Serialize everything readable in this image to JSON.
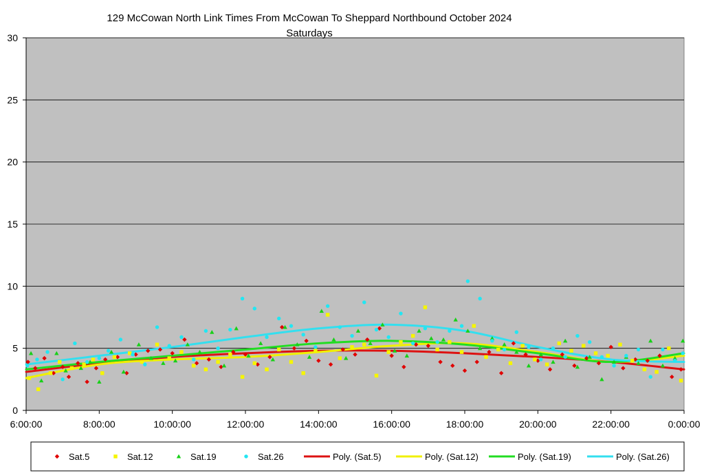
{
  "chart_data": {
    "type": "scatter",
    "title": "129 McCowan North Link Times From McCowan To Sheppard Northbound October 2024",
    "subtitle": "Saturdays",
    "xlabel": "",
    "ylabel": "",
    "xlim": [
      "6:00:00",
      "0:00:00"
    ],
    "ylim": [
      0,
      30
    ],
    "x_ticks": [
      "6:00:00",
      "8:00:00",
      "10:00:00",
      "12:00:00",
      "14:00:00",
      "16:00:00",
      "18:00:00",
      "20:00:00",
      "22:00:00",
      "0:00:00"
    ],
    "y_ticks": [
      "0",
      "5",
      "10",
      "15",
      "20",
      "25",
      "30"
    ],
    "grid": "horizontal",
    "legend_position": "bottom",
    "series": [
      {
        "name": "Sat.5",
        "kind": "scatter",
        "marker": "diamond",
        "color": "#e00000",
        "x": [
          "6:03",
          "6:15",
          "6:30",
          "6:45",
          "7:00",
          "7:10",
          "7:25",
          "7:40",
          "7:55",
          "8:10",
          "8:30",
          "8:45",
          "9:00",
          "9:20",
          "9:40",
          "10:00",
          "10:20",
          "10:40",
          "11:00",
          "11:20",
          "11:40",
          "12:00",
          "12:20",
          "12:40",
          "13:00",
          "13:20",
          "13:40",
          "14:00",
          "14:20",
          "14:40",
          "15:00",
          "15:20",
          "15:40",
          "16:00",
          "16:20",
          "16:40",
          "17:00",
          "17:20",
          "17:40",
          "18:00",
          "18:20",
          "18:40",
          "19:00",
          "19:20",
          "19:40",
          "20:00",
          "20:20",
          "20:40",
          "21:00",
          "21:20",
          "21:40",
          "22:00",
          "22:20",
          "22:40",
          "23:00",
          "23:20",
          "23:40",
          "23:55"
        ],
        "y": [
          3.9,
          3.4,
          4.2,
          3.0,
          3.5,
          2.7,
          3.8,
          2.3,
          3.4,
          4.1,
          4.3,
          3.0,
          4.5,
          4.8,
          4.9,
          4.6,
          5.7,
          3.8,
          4.1,
          3.5,
          4.7,
          4.5,
          3.7,
          4.3,
          6.7,
          5.0,
          5.6,
          4.0,
          3.7,
          4.9,
          4.5,
          5.7,
          6.6,
          4.4,
          3.5,
          5.3,
          5.2,
          3.9,
          3.6,
          3.2,
          3.9,
          4.7,
          3.0,
          5.4,
          4.5,
          4.0,
          3.3,
          4.5,
          3.6,
          4.2,
          3.8,
          5.1,
          3.4,
          4.1,
          4.0,
          4.4,
          2.7,
          3.3
        ]
      },
      {
        "name": "Sat.12",
        "kind": "scatter",
        "marker": "square",
        "color": "#f5f500",
        "x": [
          "6:05",
          "6:20",
          "6:40",
          "6:55",
          "7:15",
          "7:35",
          "7:50",
          "8:05",
          "8:25",
          "8:50",
          "9:10",
          "9:35",
          "9:55",
          "10:15",
          "10:35",
          "10:55",
          "11:15",
          "11:35",
          "11:55",
          "12:15",
          "12:35",
          "12:55",
          "13:15",
          "13:35",
          "13:55",
          "14:15",
          "14:35",
          "14:55",
          "15:15",
          "15:35",
          "15:55",
          "16:15",
          "16:35",
          "16:55",
          "17:15",
          "17:35",
          "17:55",
          "18:15",
          "18:35",
          "18:55",
          "19:15",
          "19:35",
          "19:55",
          "20:15",
          "20:35",
          "20:55",
          "21:15",
          "21:35",
          "21:55",
          "22:15",
          "22:35",
          "22:55",
          "23:15",
          "23:35",
          "23:55"
        ],
        "y": [
          2.6,
          1.7,
          3.0,
          3.9,
          3.4,
          3.7,
          4.1,
          3.0,
          4.3,
          4.6,
          3.9,
          5.3,
          4.2,
          4.7,
          3.6,
          3.3,
          3.9,
          4.5,
          2.7,
          3.8,
          3.3,
          4.9,
          3.9,
          3.0,
          4.8,
          7.7,
          4.2,
          5.1,
          5.3,
          2.8,
          4.7,
          5.5,
          6.0,
          8.3,
          4.9,
          5.5,
          4.7,
          6.8,
          4.3,
          4.9,
          3.8,
          5.2,
          4.1,
          3.7,
          5.4,
          4.8,
          5.2,
          4.6,
          4.4,
          5.3,
          4.0,
          3.3,
          3.1,
          5.0,
          2.4
        ]
      },
      {
        "name": "Sat.19",
        "kind": "scatter",
        "marker": "triangle",
        "color": "#18d018",
        "x": [
          "6:08",
          "6:25",
          "6:50",
          "7:05",
          "7:30",
          "7:45",
          "8:00",
          "8:20",
          "8:40",
          "9:05",
          "9:25",
          "9:45",
          "10:05",
          "10:25",
          "10:45",
          "11:05",
          "11:25",
          "11:45",
          "12:05",
          "12:25",
          "12:45",
          "13:05",
          "13:25",
          "13:45",
          "14:05",
          "14:25",
          "14:45",
          "15:05",
          "15:25",
          "15:45",
          "16:05",
          "16:25",
          "16:45",
          "17:05",
          "17:25",
          "17:45",
          "18:05",
          "18:25",
          "18:45",
          "19:05",
          "19:25",
          "19:45",
          "20:05",
          "20:25",
          "20:45",
          "21:05",
          "21:25",
          "21:45",
          "22:05",
          "22:25",
          "22:45",
          "23:05",
          "23:25",
          "23:45",
          "23:58"
        ],
        "y": [
          4.6,
          2.4,
          4.6,
          3.2,
          3.4,
          3.9,
          2.3,
          4.7,
          3.1,
          5.3,
          4.2,
          3.8,
          4.0,
          5.3,
          4.7,
          6.3,
          3.6,
          6.6,
          4.4,
          5.4,
          4.1,
          6.7,
          5.3,
          4.3,
          8.0,
          5.7,
          4.2,
          6.4,
          5.4,
          6.9,
          4.8,
          4.4,
          6.4,
          5.8,
          5.7,
          7.3,
          6.4,
          5.0,
          5.8,
          5.3,
          4.7,
          3.6,
          4.5,
          3.9,
          5.6,
          3.5,
          4.3,
          2.5,
          3.9,
          4.3,
          3.8,
          5.6,
          3.6,
          4.2,
          5.6
        ]
      },
      {
        "name": "Sat.26",
        "kind": "scatter",
        "marker": "circle",
        "color": "#22e6f2",
        "x": [
          "6:02",
          "6:18",
          "6:35",
          "7:00",
          "7:20",
          "7:40",
          "8:00",
          "8:15",
          "8:35",
          "8:55",
          "9:15",
          "9:35",
          "9:55",
          "10:15",
          "10:35",
          "10:55",
          "11:15",
          "11:35",
          "11:55",
          "12:15",
          "12:35",
          "12:55",
          "13:15",
          "13:35",
          "13:55",
          "14:15",
          "14:35",
          "14:55",
          "15:15",
          "15:35",
          "15:55",
          "16:15",
          "16:35",
          "16:55",
          "17:15",
          "17:35",
          "17:55",
          "18:05",
          "18:25",
          "18:45",
          "19:05",
          "19:25",
          "19:45",
          "20:05",
          "20:25",
          "20:45",
          "21:05",
          "21:25",
          "21:45",
          "22:05",
          "22:25",
          "22:45",
          "23:05",
          "23:25",
          "23:45",
          "23:58"
        ],
        "y": [
          3.6,
          4.1,
          4.7,
          2.5,
          5.4,
          3.9,
          4.2,
          4.8,
          5.7,
          4.5,
          3.7,
          6.7,
          5.2,
          5.9,
          4.1,
          6.4,
          5.0,
          6.5,
          9.0,
          8.2,
          5.9,
          7.4,
          6.8,
          6.1,
          5.1,
          8.4,
          6.7,
          6.0,
          8.7,
          6.5,
          5.9,
          7.8,
          5.4,
          6.6,
          5.5,
          6.4,
          6.8,
          10.4,
          9.0,
          5.6,
          4.9,
          6.3,
          5.1,
          4.1,
          5.0,
          4.3,
          6.0,
          5.5,
          4.3,
          3.6,
          4.4,
          4.9,
          2.7,
          4.9,
          4.0,
          4.6
        ]
      },
      {
        "name": "Poly. (Sat.5)",
        "kind": "trend",
        "color": "#dd1111",
        "x": [
          "6:00",
          "8:00",
          "10:00",
          "12:00",
          "14:00",
          "16:00",
          "18:00",
          "20:00",
          "22:00",
          "0:00"
        ],
        "y": [
          3.1,
          3.8,
          4.3,
          4.6,
          4.8,
          4.8,
          4.6,
          4.3,
          3.9,
          3.3
        ]
      },
      {
        "name": "Poly. (Sat.12)",
        "kind": "trend",
        "color": "#f0f000",
        "x": [
          "6:00",
          "8:00",
          "10:00",
          "12:00",
          "14:00",
          "16:00",
          "18:00",
          "20:00",
          "22:00",
          "0:00"
        ],
        "y": [
          2.6,
          3.7,
          4.1,
          4.3,
          4.7,
          5.2,
          5.4,
          4.7,
          3.9,
          4.4
        ]
      },
      {
        "name": "Poly. (Sat.19)",
        "kind": "trend",
        "color": "#22dd22",
        "x": [
          "6:00",
          "8:00",
          "10:00",
          "12:00",
          "14:00",
          "16:00",
          "18:00",
          "20:00",
          "22:00",
          "0:00"
        ],
        "y": [
          3.3,
          3.9,
          4.4,
          4.9,
          5.4,
          5.6,
          5.3,
          4.6,
          3.9,
          4.6
        ]
      },
      {
        "name": "Poly. (Sat.26)",
        "kind": "trend",
        "color": "#33dfef",
        "x": [
          "6:00",
          "8:00",
          "10:00",
          "12:00",
          "14:00",
          "16:00",
          "18:00",
          "20:00",
          "22:00",
          "0:00"
        ],
        "y": [
          3.7,
          4.4,
          5.1,
          5.9,
          6.6,
          6.9,
          6.4,
          5.1,
          4.1,
          3.9
        ]
      }
    ]
  }
}
